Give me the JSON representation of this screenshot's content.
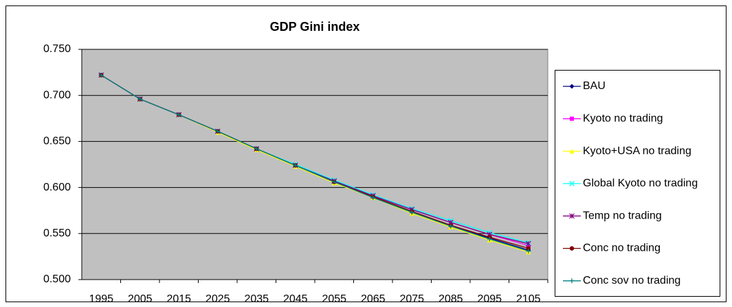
{
  "chart_data": {
    "type": "line",
    "title": "GDP Gini index",
    "categories": [
      "1995",
      "2005",
      "2015",
      "2025",
      "2035",
      "2045",
      "2055",
      "2065",
      "2075",
      "2085",
      "2095",
      "2105"
    ],
    "ylim": [
      0.5,
      0.75
    ],
    "yticks": [
      {
        "value": 0.5,
        "label": "0.500"
      },
      {
        "value": 0.55,
        "label": "0.550"
      },
      {
        "value": 0.6,
        "label": "0.600"
      },
      {
        "value": 0.65,
        "label": "0.650"
      },
      {
        "value": 0.7,
        "label": "0.700"
      },
      {
        "value": 0.75,
        "label": "0.750"
      }
    ],
    "grid": true,
    "legend": "right",
    "series": [
      {
        "name": "BAU",
        "color": "#000080",
        "marker": "diamond",
        "values": [
          0.722,
          0.696,
          0.679,
          0.661,
          0.642,
          0.624,
          0.606,
          0.59,
          0.574,
          0.559,
          0.545,
          0.532
        ]
      },
      {
        "name": "Kyoto no trading",
        "color": "#ff00ff",
        "marker": "square",
        "values": [
          0.722,
          0.696,
          0.679,
          0.661,
          0.642,
          0.624,
          0.607,
          0.591,
          0.576,
          0.562,
          0.549,
          0.537
        ]
      },
      {
        "name": "Kyoto+USA no trading",
        "color": "#ffff00",
        "marker": "triangle",
        "values": [
          0.722,
          0.696,
          0.679,
          0.66,
          0.641,
          0.623,
          0.605,
          0.589,
          0.572,
          0.557,
          0.543,
          0.53
        ]
      },
      {
        "name": "Global Kyoto no trading",
        "color": "#00ffff",
        "marker": "x",
        "values": [
          0.722,
          0.696,
          0.679,
          0.661,
          0.642,
          0.625,
          0.608,
          0.592,
          0.577,
          0.564,
          0.551,
          0.54
        ]
      },
      {
        "name": "Temp no trading",
        "color": "#800080",
        "marker": "star",
        "values": [
          0.722,
          0.696,
          0.679,
          0.661,
          0.642,
          0.624,
          0.607,
          0.591,
          0.576,
          0.562,
          0.549,
          0.539
        ]
      },
      {
        "name": "Conc no trading",
        "color": "#800000",
        "marker": "circle",
        "values": [
          0.722,
          0.696,
          0.679,
          0.661,
          0.642,
          0.624,
          0.606,
          0.59,
          0.574,
          0.559,
          0.546,
          0.534
        ]
      },
      {
        "name": "Conc sov no trading",
        "color": "#008080",
        "marker": "plus",
        "values": [
          0.722,
          0.696,
          0.679,
          0.661,
          0.642,
          0.624,
          0.606,
          0.589,
          0.573,
          0.558,
          0.544,
          0.531
        ]
      }
    ]
  }
}
